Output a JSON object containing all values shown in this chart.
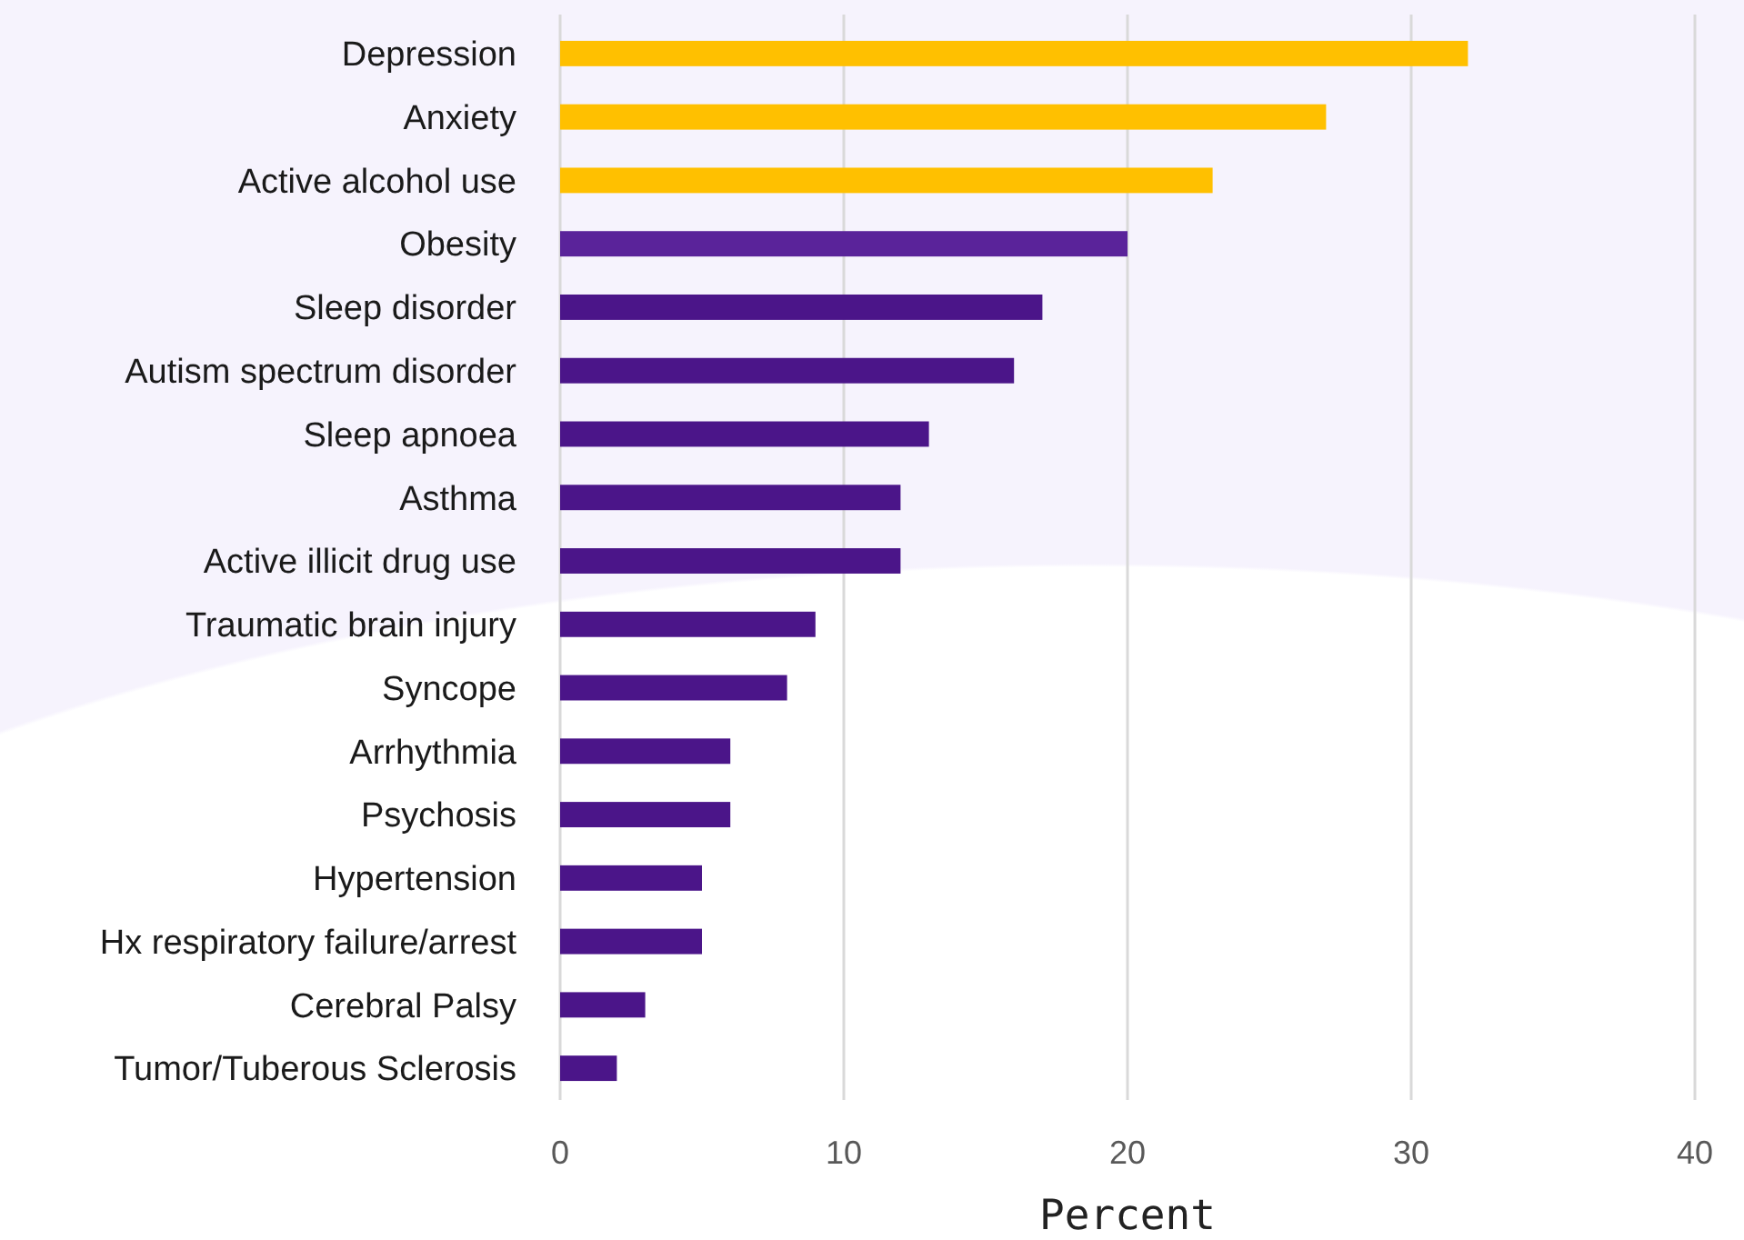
{
  "chart_data": {
    "type": "bar",
    "orientation": "horizontal",
    "xlabel": "Percent",
    "categories": [
      "Depression",
      "Anxiety",
      "Active alcohol use",
      "Obesity",
      "Sleep disorder",
      "Autism spectrum disorder",
      "Sleep apnoea",
      "Asthma",
      "Active illicit drug use",
      "Traumatic brain injury",
      "Syncope",
      "Arrhythmia",
      "Psychosis",
      "Hypertension",
      "Hx respiratory failure/arrest",
      "Cerebral Palsy",
      "Tumor/Tuberous Sclerosis"
    ],
    "values": [
      32,
      27,
      23,
      20,
      17,
      16,
      13,
      12,
      12,
      9,
      8,
      6,
      6,
      5,
      5,
      3,
      2
    ],
    "colors": [
      "#ffc000",
      "#ffc000",
      "#ffc000",
      "#5a239a",
      "#4b1589",
      "#4b1589",
      "#4b1589",
      "#4b1589",
      "#4b1589",
      "#4b1589",
      "#4b1589",
      "#4b1589",
      "#4b1589",
      "#4b1589",
      "#4b1589",
      "#4b1589",
      "#4b1589"
    ],
    "xlim": [
      0,
      40
    ],
    "xticks": [
      0,
      10,
      20,
      30,
      40
    ],
    "grid": "x"
  }
}
